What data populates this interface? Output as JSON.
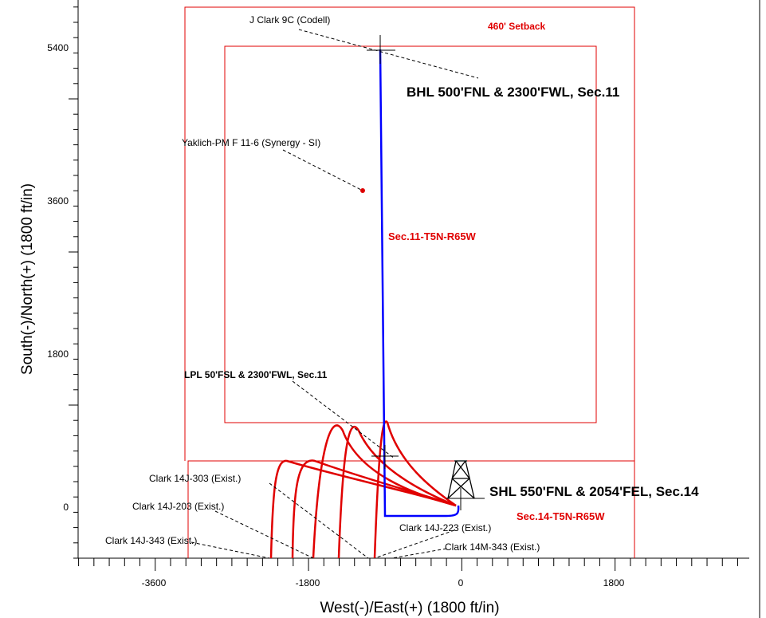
{
  "axes": {
    "x_label": "West(-)/East(+) (1800 ft/in)",
    "y_label": "South(-)/North(+) (1800 ft/in)",
    "x_ticks": [
      "-3600",
      "-1800",
      "0",
      "1800"
    ],
    "y_ticks": [
      "5400",
      "3600",
      "1800",
      "0"
    ]
  },
  "labels": {
    "setback": "460' Setback",
    "target_well": "J Clark 9C (Codell)",
    "bhl": "BHL 500'FNL & 2300'FWL, Sec.11",
    "yaklich": "Yaklich-PM F 11-6 (Synergy - SI)",
    "sec11": "Sec.11-T5N-R65W",
    "lpl": "LPL 50'FSL & 2300'FWL, Sec.11",
    "shl": "SHL 550'FNL & 2054'FEL, Sec.14",
    "sec14": "Sec.14-T5N-R65W",
    "well_303": "Clark 14J-303 (Exist.)",
    "well_203": "Clark 14J-203 (Exist.)",
    "well_343": "Clark 14J-343 (Exist.)",
    "well_223": "Clark 14J-223 (Exist.)",
    "well_m343": "Clark 14M-343 (Exist.)"
  },
  "colors": {
    "planned_well": "#0000ff",
    "existing_wells": "#e00000",
    "boundaries": "#e00000",
    "axes": "#000000"
  }
}
